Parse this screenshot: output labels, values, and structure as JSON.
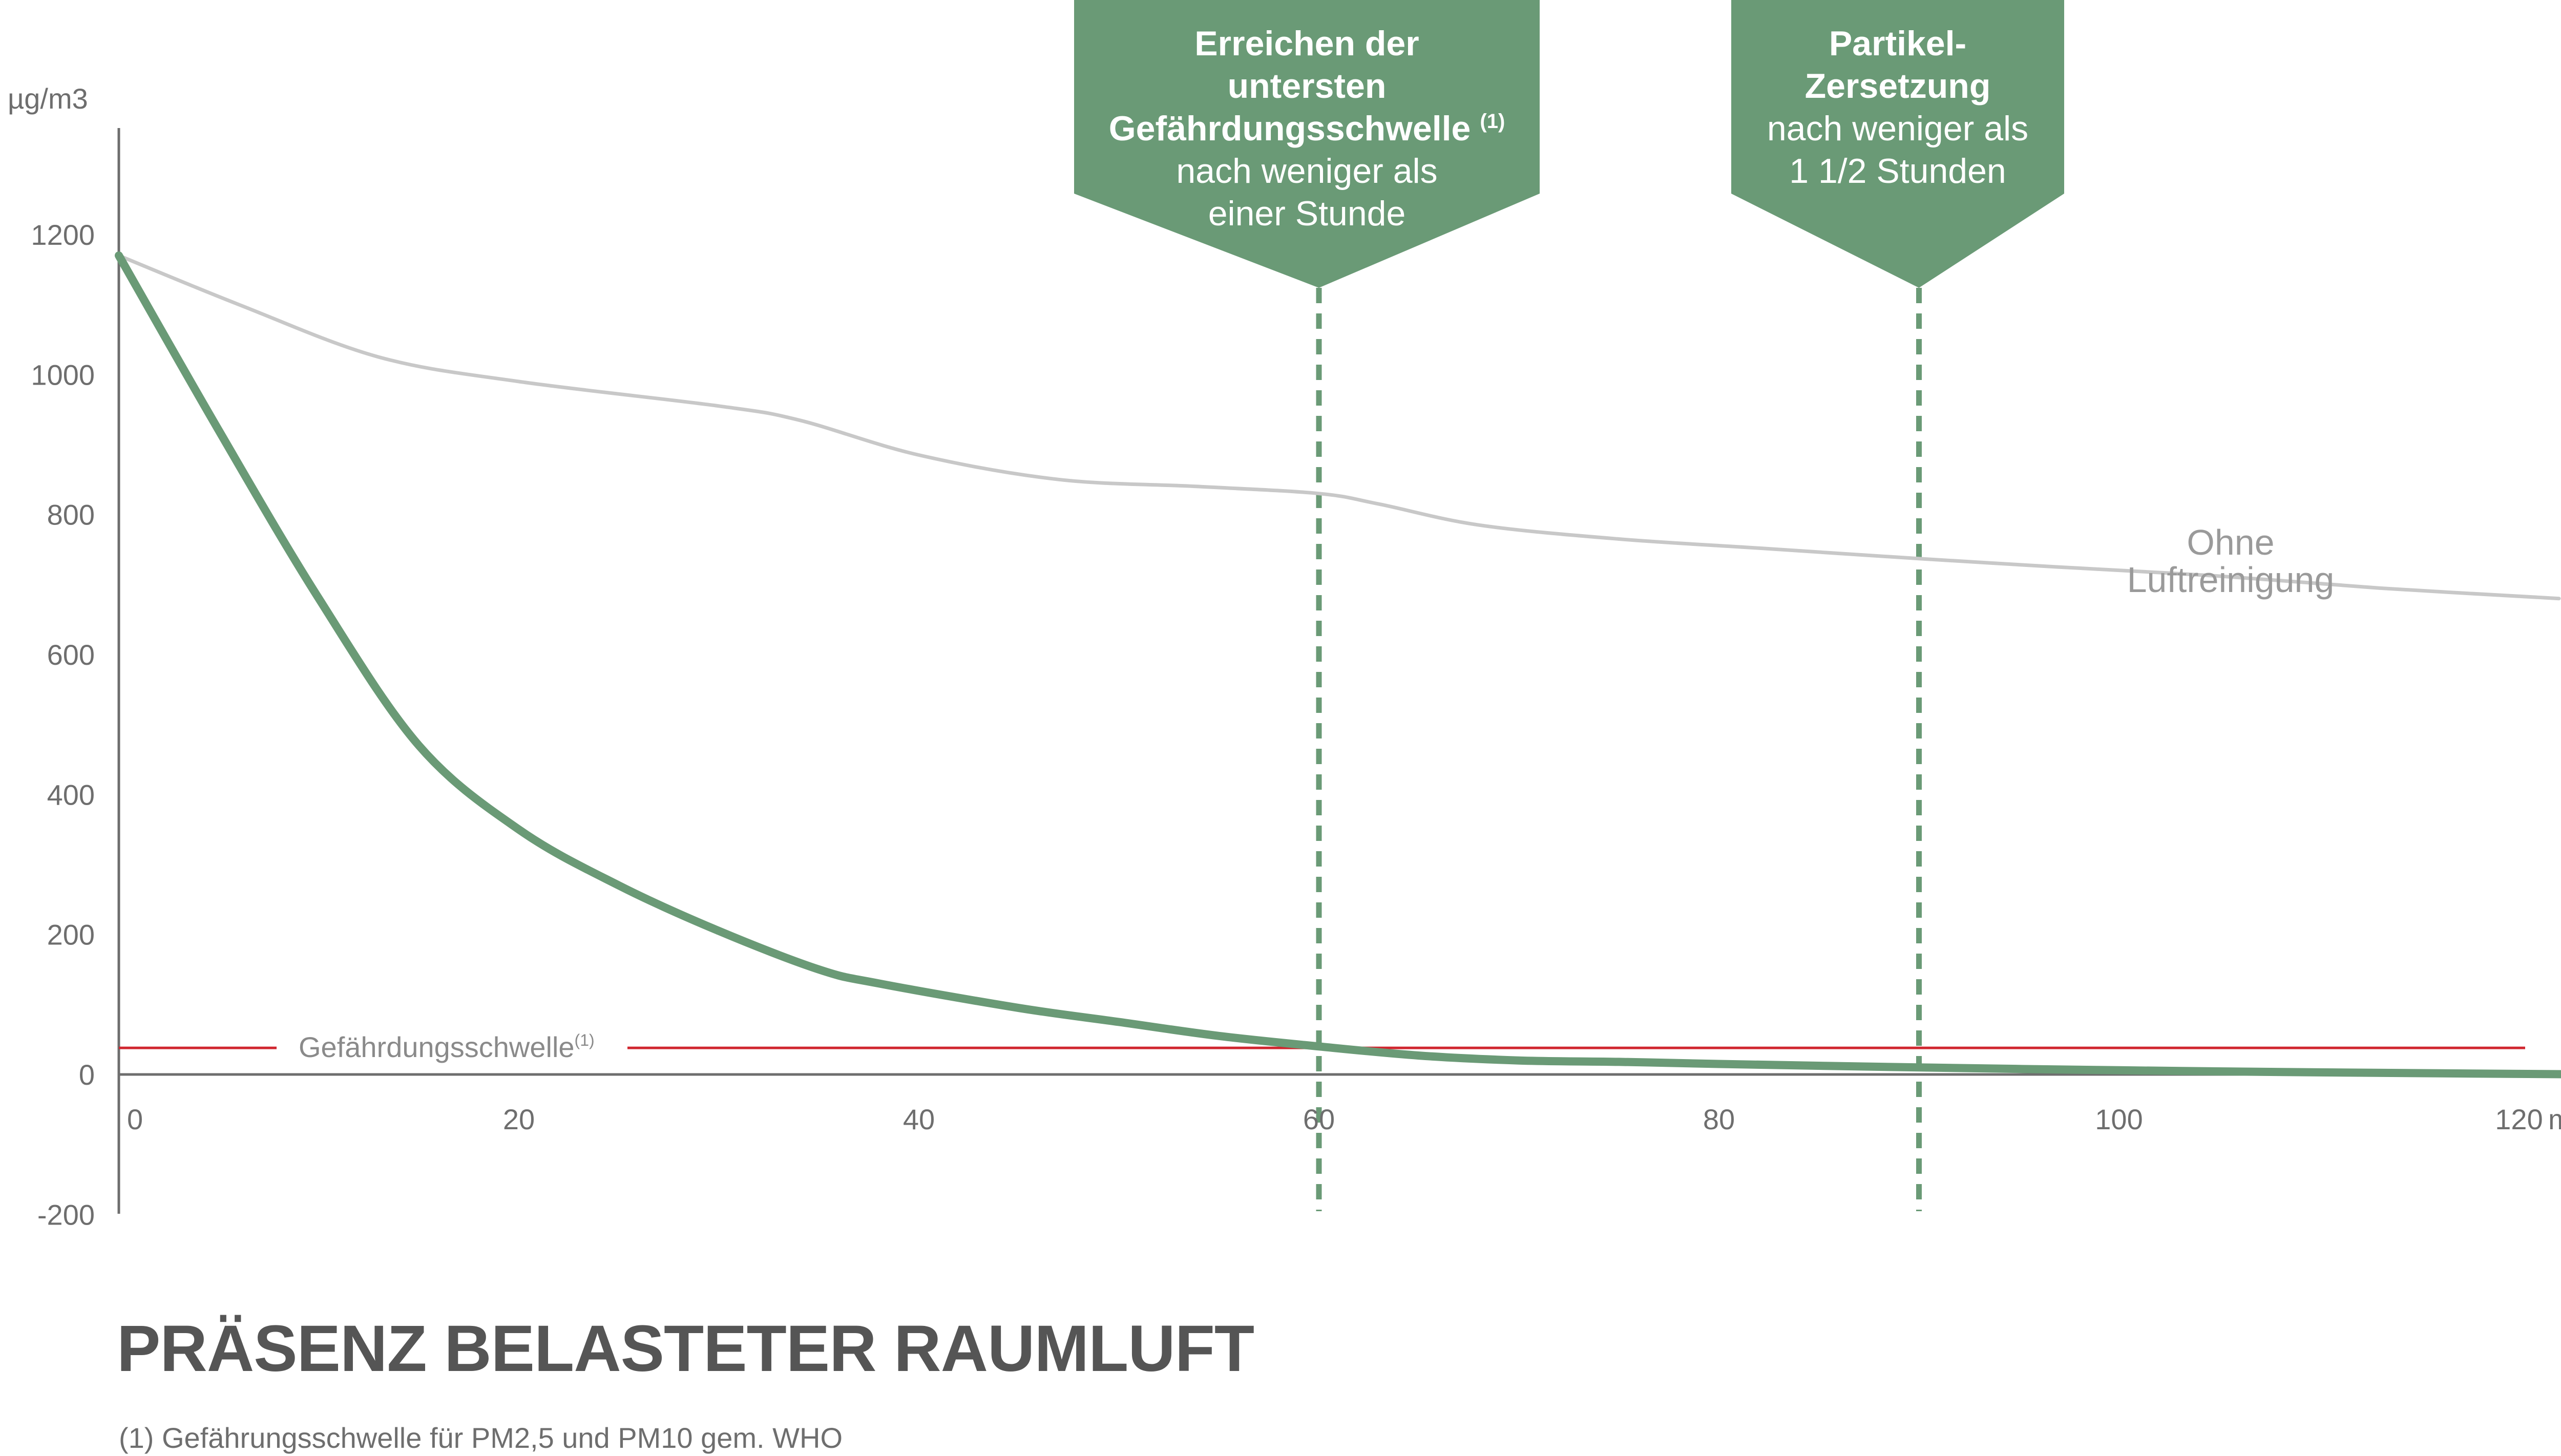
{
  "colors": {
    "with_purifier": "#6a9a76",
    "without_purifier": "#c8c8c8",
    "threshold": "#d0262f",
    "callout": "#6a9a76",
    "axis": "#6e6e6e",
    "text": "#555555"
  },
  "chart_data": {
    "type": "line",
    "title": "PRÄSENZ BELASTETER RAUMLUFT",
    "footnote": "(1) Gefährungsschwelle für PM2,5 und PM10 gem. WHO",
    "xlabel": "minuten",
    "ylabel": "µg/m3",
    "xlim": [
      0,
      122
    ],
    "ylim": [
      -200,
      1300
    ],
    "xticks": [
      0,
      20,
      40,
      60,
      80,
      100,
      120
    ],
    "yticks": [
      -200,
      0,
      200,
      400,
      600,
      800,
      1000,
      1200
    ],
    "grid": false,
    "series": [
      {
        "name": "Ohne Luftreinigung",
        "label_lines": [
          "Ohne",
          "Luftreinigung"
        ],
        "color": "#c8c8c8",
        "x": [
          0,
          6,
          13,
          20,
          30,
          34,
          40,
          47,
          54,
          60,
          63,
          68,
          75,
          82,
          90,
          97,
          105,
          113,
          122
        ],
        "y": [
          1170,
          1100,
          1025,
          990,
          955,
          935,
          885,
          850,
          840,
          830,
          815,
          785,
          765,
          752,
          737,
          725,
          712,
          695,
          680
        ]
      },
      {
        "name": "",
        "color": "#6a9a76",
        "x": [
          0,
          5,
          10,
          15,
          20,
          25,
          30,
          35,
          38,
          45,
          50,
          55,
          60,
          65,
          70,
          75,
          80,
          90,
          100,
          110,
          124
        ],
        "y": [
          1170,
          920,
          680,
          470,
          350,
          270,
          205,
          150,
          130,
          95,
          75,
          55,
          40,
          27,
          20,
          18,
          15,
          10,
          6,
          3,
          0
        ]
      }
    ],
    "threshold": {
      "value": 38,
      "label": "Gefährdungsschwelle",
      "label_sup": "(1)"
    },
    "markers": [
      {
        "x": 60,
        "lines": [
          {
            "text": "Erreichen der",
            "bold": true
          },
          {
            "text": "untersten",
            "bold": true
          },
          {
            "text": "Gefährdungsschwelle",
            "bold": true,
            "sup": "(1)"
          },
          {
            "text": "nach weniger als",
            "bold": false
          },
          {
            "text": "einer Stunde",
            "bold": false
          }
        ]
      },
      {
        "x": 90,
        "lines": [
          {
            "text": "Partikel-",
            "bold": true
          },
          {
            "text": "Zersetzung",
            "bold": true
          },
          {
            "text": "nach weniger als",
            "bold": false
          },
          {
            "text": "1 1/2 Stunden",
            "bold": false
          }
        ]
      }
    ]
  }
}
